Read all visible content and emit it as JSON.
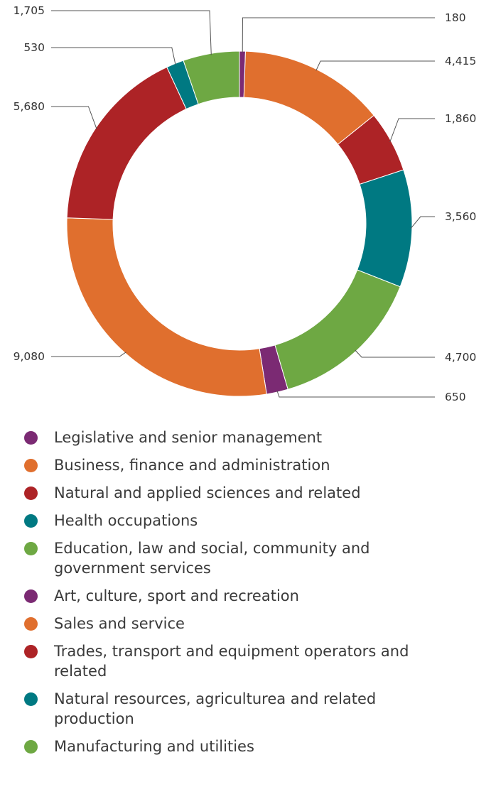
{
  "chart_data": {
    "type": "pie",
    "donut": true,
    "legend_position": "bottom",
    "series": [
      {
        "name": "Legislative and senior management",
        "value": 180,
        "color": "#7b2a73"
      },
      {
        "name": "Business, finance and administration",
        "value": 4415,
        "color": "#e06f2e"
      },
      {
        "name": "Natural and applied sciences and related",
        "value": 1860,
        "color": "#ad2326"
      },
      {
        "name": "Health occupations",
        "value": 3560,
        "color": "#007982"
      },
      {
        "name": "Education, law and social, community and government services",
        "value": 4700,
        "color": "#6ea843"
      },
      {
        "name": "Art, culture, sport and recreation",
        "value": 650,
        "color": "#7b2a73"
      },
      {
        "name": "Sales and service",
        "value": 9080,
        "color": "#e06f2e"
      },
      {
        "name": "Trades, transport and equipment operators and related",
        "value": 5680,
        "color": "#ad2326"
      },
      {
        "name": "Natural resources, agriculturea and related production",
        "value": 530,
        "color": "#007982"
      },
      {
        "name": "Manufacturing and utilities",
        "value": 1705,
        "color": "#6ea843"
      }
    ],
    "data_labels": [
      "180",
      "4,415",
      "1,860",
      "3,560",
      "4,700",
      "650",
      "9,080",
      "5,680",
      "530",
      "1,705"
    ]
  }
}
